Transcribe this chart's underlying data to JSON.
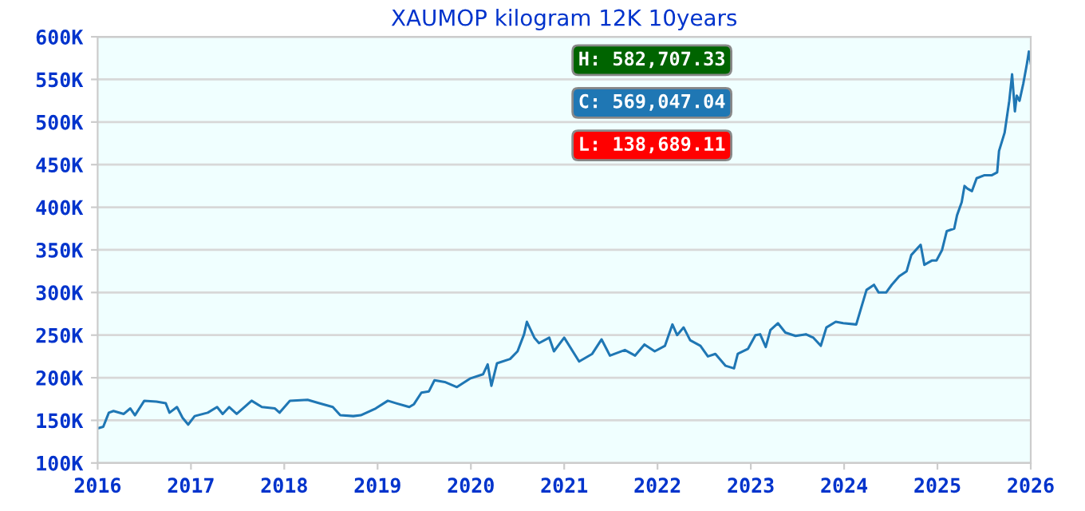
{
  "chart_data": {
    "type": "line",
    "title": "XAUMOP kilogram 12K 10years",
    "x": [
      2016.0,
      2016.06,
      2016.12,
      2016.17,
      2016.28,
      2016.35,
      2016.4,
      2016.5,
      2016.63,
      2016.73,
      2016.77,
      2016.85,
      2016.91,
      2016.97,
      2017.04,
      2017.18,
      2017.28,
      2017.34,
      2017.41,
      2017.49,
      2017.65,
      2017.76,
      2017.9,
      2017.95,
      2018.06,
      2018.25,
      2018.36,
      2018.52,
      2018.6,
      2018.74,
      2018.82,
      2018.98,
      2019.11,
      2019.2,
      2019.34,
      2019.39,
      2019.47,
      2019.55,
      2019.61,
      2019.72,
      2019.85,
      2019.99,
      2020.13,
      2020.18,
      2020.22,
      2020.28,
      2020.42,
      2020.5,
      2020.57,
      2020.6,
      2020.68,
      2020.73,
      2020.84,
      2020.89,
      2021.0,
      2021.16,
      2021.3,
      2021.4,
      2021.49,
      2021.65,
      2021.76,
      2021.86,
      2021.97,
      2022.08,
      2022.16,
      2022.21,
      2022.28,
      2022.35,
      2022.46,
      2022.54,
      2022.62,
      2022.73,
      2022.82,
      2022.86,
      2022.97,
      2023.05,
      2023.1,
      2023.16,
      2023.21,
      2023.29,
      2023.37,
      2023.48,
      2023.59,
      2023.67,
      2023.75,
      2023.81,
      2023.91,
      2023.99,
      2024.13,
      2024.18,
      2024.24,
      2024.32,
      2024.37,
      2024.45,
      2024.51,
      2024.59,
      2024.67,
      2024.72,
      2024.82,
      2024.86,
      2024.94,
      2024.99,
      2025.05,
      2025.1,
      2025.18,
      2025.21,
      2025.26,
      2025.29,
      2025.32,
      2025.37,
      2025.42,
      2025.5,
      2025.58,
      2025.64,
      2025.66,
      2025.72,
      2025.77,
      2025.8,
      2025.83,
      2025.85,
      2025.88,
      2025.92,
      2025.96,
      2025.98,
      2026.0
    ],
    "series": [
      {
        "color": "#1f77b4",
        "values": [
          140.6,
          142.5,
          159,
          161,
          157.5,
          164,
          156,
          173,
          172,
          170,
          159,
          165.6,
          153,
          145,
          155,
          159,
          165.6,
          157.5,
          165.6,
          157.5,
          173,
          165.6,
          164,
          159,
          173,
          174,
          170.6,
          165.6,
          156,
          155,
          156,
          164,
          173,
          170,
          165.6,
          169,
          182.5,
          184,
          197,
          195,
          189,
          199,
          204,
          215.6,
          190.6,
          217,
          222,
          231,
          251,
          265.6,
          247,
          240.6,
          247,
          231,
          247,
          219,
          228,
          245,
          226,
          232.5,
          226,
          239,
          231,
          237.5,
          262.5,
          250,
          259,
          244,
          237.5,
          225,
          228,
          214,
          211,
          228,
          234,
          250,
          251,
          236,
          256,
          264,
          253,
          249,
          251,
          247,
          237.5,
          259,
          265.6,
          264,
          262.5,
          281,
          303,
          309,
          300,
          300,
          309,
          319,
          325,
          344,
          356,
          332.5,
          337.5,
          337.5,
          350,
          372,
          375,
          390.6,
          406,
          425,
          422,
          419,
          434,
          437.5,
          437.5,
          441,
          466,
          487.5,
          525,
          556,
          512.5,
          531,
          525,
          545,
          569,
          582.7,
          569.0
        ]
      }
    ],
    "xlim": [
      2016,
      2026
    ],
    "xticks": [
      2016,
      2017,
      2018,
      2019,
      2020,
      2021,
      2022,
      2023,
      2024,
      2025,
      2026
    ],
    "ylim": [
      100,
      600
    ],
    "yticks": [
      {
        "value": 100,
        "label": "100K"
      },
      {
        "value": 150,
        "label": "150K"
      },
      {
        "value": 200,
        "label": "200K"
      },
      {
        "value": 250,
        "label": "250K"
      },
      {
        "value": 300,
        "label": "300K"
      },
      {
        "value": 350,
        "label": "350K"
      },
      {
        "value": 400,
        "label": "400K"
      },
      {
        "value": 450,
        "label": "450K"
      },
      {
        "value": 500,
        "label": "500K"
      },
      {
        "value": 550,
        "label": "550K"
      },
      {
        "value": 600,
        "label": "600K"
      }
    ],
    "grid": "y",
    "legend": false,
    "annotations": [
      "H: 582,707.33",
      "C: 569,047.04",
      "L: 138,689.11"
    ]
  }
}
